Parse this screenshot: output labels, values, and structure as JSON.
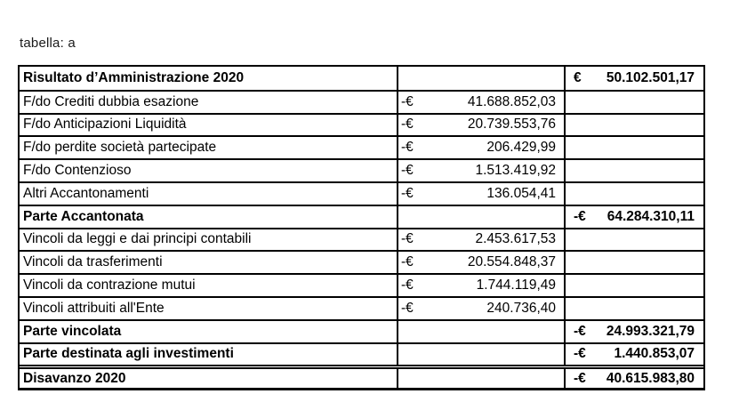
{
  "page": {
    "title": "tabella: a"
  },
  "colors": {
    "background": "#ffffff",
    "text": "#000000",
    "border": "#000000"
  },
  "table": {
    "rows": [
      {
        "label": "Risultato d’Amministrazione 2020",
        "c2": {
          "sign": "",
          "value": ""
        },
        "c3": {
          "sign": "€",
          "value": "50.102.501,17"
        }
      },
      {
        "label": "F/do Crediti dubbia esazione",
        "c2": {
          "sign": "-€",
          "value": "41.688.852,03"
        },
        "c3": {
          "sign": "",
          "value": ""
        }
      },
      {
        "label": "F/do Anticipazioni Liquidità",
        "c2": {
          "sign": "-€",
          "value": "20.739.553,76"
        },
        "c3": {
          "sign": "",
          "value": ""
        }
      },
      {
        "label": "F/do perdite società partecipate",
        "c2": {
          "sign": "-€",
          "value": "206.429,99"
        },
        "c3": {
          "sign": "",
          "value": ""
        }
      },
      {
        "label": "F/do Contenzioso",
        "c2": {
          "sign": "-€",
          "value": "1.513.419,92"
        },
        "c3": {
          "sign": "",
          "value": ""
        }
      },
      {
        "label": "Altri Accantonamenti",
        "c2": {
          "sign": "-€",
          "value": "136.054,41"
        },
        "c3": {
          "sign": "",
          "value": ""
        }
      },
      {
        "label": "Parte Accantonata",
        "c2": {
          "sign": "",
          "value": ""
        },
        "c3": {
          "sign": "-€",
          "value": "64.284.310,11"
        }
      },
      {
        "label": "Vincoli da leggi e dai principi contabili",
        "c2": {
          "sign": "-€",
          "value": "2.453.617,53"
        },
        "c3": {
          "sign": "",
          "value": ""
        }
      },
      {
        "label": "Vincoli da trasferimenti",
        "c2": {
          "sign": "-€",
          "value": "20.554.848,37"
        },
        "c3": {
          "sign": "",
          "value": ""
        }
      },
      {
        "label": "Vincoli da contrazione mutui",
        "c2": {
          "sign": "-€",
          "value": "1.744.119,49"
        },
        "c3": {
          "sign": "",
          "value": ""
        }
      },
      {
        "label": "Vincoli attribuiti all'Ente",
        "c2": {
          "sign": "-€",
          "value": "240.736,40"
        },
        "c3": {
          "sign": "",
          "value": ""
        }
      },
      {
        "label": "Parte vincolata",
        "c2": {
          "sign": "",
          "value": ""
        },
        "c3": {
          "sign": "-€",
          "value": "24.993.321,79"
        }
      },
      {
        "label": "Parte destinata agli investimenti",
        "c2": {
          "sign": "",
          "value": ""
        },
        "c3": {
          "sign": "-€",
          "value": "1.440.853,07"
        }
      },
      {
        "label": "Disavanzo 2020",
        "c2": {
          "sign": "",
          "value": ""
        },
        "c3": {
          "sign": "-€",
          "value": "40.615.983,80"
        }
      }
    ]
  }
}
